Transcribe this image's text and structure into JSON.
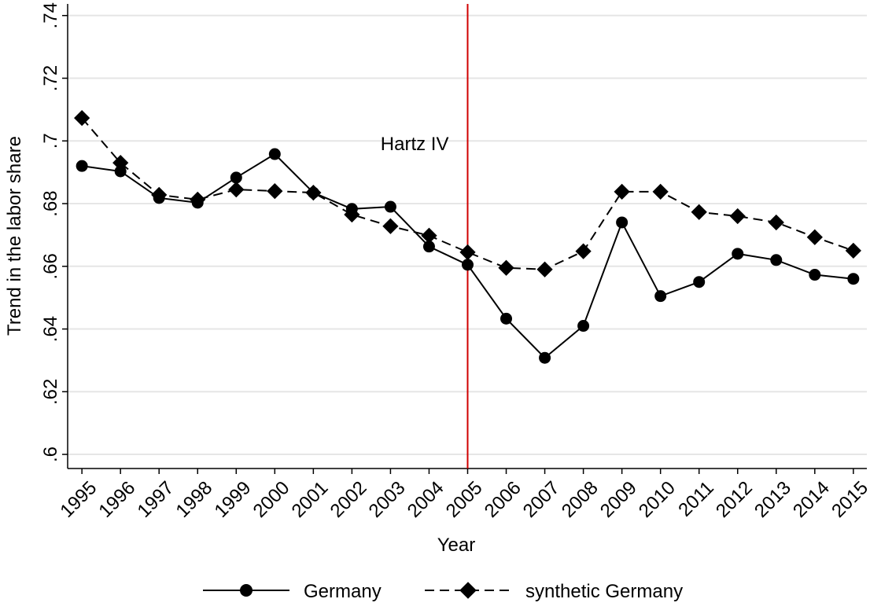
{
  "chart_data": {
    "type": "line",
    "y_label": "Trend in the labor share",
    "x_label": "Year",
    "annotation": "Hartz IV",
    "vline": 2005,
    "vline_color": "#d00000",
    "x": [
      1995,
      1996,
      1997,
      1998,
      1999,
      2000,
      2001,
      2002,
      2003,
      2004,
      2005,
      2006,
      2007,
      2008,
      2009,
      2010,
      2011,
      2012,
      2013,
      2014,
      2015
    ],
    "xlim": [
      1994.63,
      2015.35
    ],
    "xticks": [
      1995,
      1996,
      1997,
      1998,
      1999,
      2000,
      2001,
      2002,
      2003,
      2004,
      2005,
      2006,
      2007,
      2008,
      2009,
      2010,
      2011,
      2012,
      2013,
      2014,
      2015
    ],
    "ylim": [
      0.5955,
      0.7437
    ],
    "yticks": [
      {
        "value": 0.6,
        "label": ".6"
      },
      {
        "value": 0.62,
        "label": ".62"
      },
      {
        "value": 0.64,
        "label": ".64"
      },
      {
        "value": 0.66,
        "label": ".66"
      },
      {
        "value": 0.68,
        "label": ".68"
      },
      {
        "value": 0.7,
        "label": ".7"
      },
      {
        "value": 0.72,
        "label": ".72"
      },
      {
        "value": 0.74,
        "label": ".74"
      }
    ],
    "grid": true,
    "legend_position": "bottom",
    "series": [
      {
        "name": "Germany",
        "color": "#000000",
        "dash": "solid",
        "marker": "circle",
        "values": [
          0.692,
          0.6903,
          0.6818,
          0.6803,
          0.6883,
          0.6958,
          0.6835,
          0.6783,
          0.679,
          0.6663,
          0.6605,
          0.6433,
          0.6308,
          0.641,
          0.674,
          0.6505,
          0.655,
          0.664,
          0.662,
          0.6573,
          0.656
        ]
      },
      {
        "name": "synthetic Germany",
        "color": "#000000",
        "dash": "dashed",
        "marker": "diamond",
        "values": [
          0.7073,
          0.693,
          0.6828,
          0.6813,
          0.6845,
          0.684,
          0.6835,
          0.6765,
          0.6728,
          0.6698,
          0.6645,
          0.6595,
          0.659,
          0.6648,
          0.6838,
          0.6838,
          0.6773,
          0.676,
          0.674,
          0.6693,
          0.665
        ]
      }
    ]
  }
}
